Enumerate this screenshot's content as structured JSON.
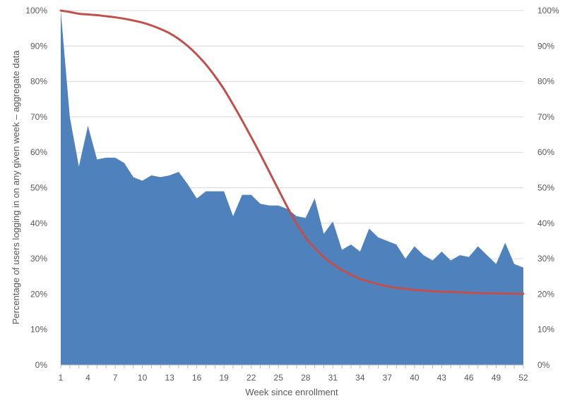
{
  "chart_data": {
    "type": "area",
    "title": "",
    "xlabel": "Week since enrollment",
    "ylabel": "Percentage of users logging in on any given week – aggregate data",
    "x": [
      1,
      2,
      3,
      4,
      5,
      6,
      7,
      8,
      9,
      10,
      11,
      12,
      13,
      14,
      15,
      16,
      17,
      18,
      19,
      20,
      21,
      22,
      23,
      24,
      25,
      26,
      27,
      28,
      29,
      30,
      31,
      32,
      33,
      34,
      35,
      36,
      37,
      38,
      39,
      40,
      41,
      42,
      43,
      44,
      45,
      46,
      47,
      48,
      49,
      50,
      51,
      52
    ],
    "xticks": [
      1,
      4,
      7,
      10,
      13,
      16,
      19,
      22,
      25,
      28,
      31,
      34,
      37,
      40,
      43,
      46,
      49,
      52
    ],
    "ylim": [
      0,
      100
    ],
    "yticks": [
      0,
      10,
      20,
      30,
      40,
      50,
      60,
      70,
      80,
      90,
      100
    ],
    "ytick_labels": [
      "0%",
      "10%",
      "20%",
      "30%",
      "40%",
      "50%",
      "60%",
      "70%",
      "80%",
      "90%",
      "100%"
    ],
    "secondary_y": true,
    "grid": true,
    "legend": "none",
    "series": [
      {
        "type": "area",
        "color": "#4f81bd",
        "values": [
          100,
          70,
          56,
          67.5,
          58,
          58.5,
          58.5,
          57,
          53,
          52,
          53.5,
          53,
          53.5,
          54.5,
          51,
          47,
          49,
          49,
          49,
          42,
          48,
          48,
          45.5,
          45,
          45,
          44,
          42,
          41.5,
          47,
          37,
          40.5,
          32.5,
          34,
          32,
          38.5,
          36,
          35,
          34,
          30,
          33.5,
          31,
          29.5,
          32,
          29.5,
          31,
          30.5,
          33.5,
          31,
          28.5,
          34.5,
          28.5,
          27.5
        ]
      },
      {
        "type": "line",
        "color": "#c0504d",
        "values": [
          100,
          99.6,
          99.1,
          98.9,
          98.7,
          98.4,
          98.1,
          97.7,
          97.2,
          96.6,
          95.8,
          94.8,
          93.6,
          92,
          90,
          87.6,
          84.8,
          81.5,
          77.8,
          73.5,
          69,
          64.3,
          59.5,
          54.5,
          49.5,
          44.5,
          40,
          36,
          33,
          30.5,
          28.5,
          26.8,
          25.5,
          24.3,
          23.5,
          22.8,
          22.2,
          21.8,
          21.5,
          21.2,
          21,
          20.8,
          20.7,
          20.6,
          20.5,
          20.4,
          20.3,
          20.25,
          20.2,
          20.15,
          20.1,
          20.1
        ]
      }
    ]
  }
}
